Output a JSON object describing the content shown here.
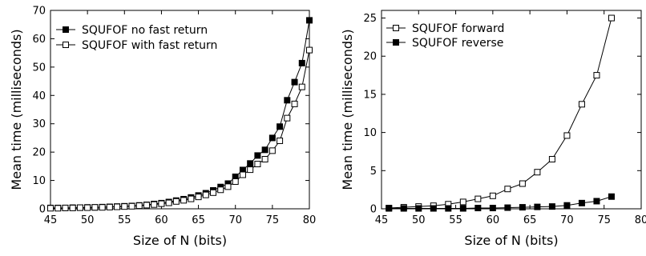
{
  "chart_data": [
    {
      "type": "line",
      "title": "",
      "xlabel": "Size of N (bits)",
      "ylabel": "Mean time (milliseconds)",
      "xlim": [
        45,
        80
      ],
      "ylim": [
        0,
        70
      ],
      "xticks": [
        45,
        50,
        55,
        60,
        65,
        70,
        75,
        80
      ],
      "yticks": [
        0,
        10,
        20,
        30,
        40,
        50,
        60,
        70
      ],
      "grid": false,
      "legend_position": "top-left",
      "series": [
        {
          "name": "SQUFOF no fast return",
          "marker": "filled-square",
          "x": [
            45,
            46,
            47,
            48,
            49,
            50,
            51,
            52,
            53,
            54,
            55,
            56,
            57,
            58,
            59,
            60,
            61,
            62,
            63,
            64,
            65,
            66,
            67,
            68,
            69,
            70,
            71,
            72,
            73,
            74,
            75,
            76,
            77,
            78,
            79,
            80
          ],
          "y": [
            0.3,
            0.3,
            0.3,
            0.4,
            0.4,
            0.5,
            0.5,
            0.6,
            0.7,
            0.8,
            0.9,
            1.0,
            1.2,
            1.4,
            1.7,
            2.0,
            2.4,
            2.9,
            3.4,
            4.0,
            4.7,
            5.5,
            6.5,
            7.7,
            8.9,
            11.3,
            13.7,
            16.0,
            18.8,
            20.8,
            25.0,
            29.0,
            38.3,
            44.7,
            51.4,
            66.5
          ]
        },
        {
          "name": "SQUFOF with fast return",
          "marker": "open-square",
          "x": [
            45,
            46,
            47,
            48,
            49,
            50,
            51,
            52,
            53,
            54,
            55,
            56,
            57,
            58,
            59,
            60,
            61,
            62,
            63,
            64,
            65,
            66,
            67,
            68,
            69,
            70,
            71,
            72,
            73,
            74,
            75,
            76,
            77,
            78,
            79,
            80
          ],
          "y": [
            0.2,
            0.2,
            0.3,
            0.3,
            0.4,
            0.4,
            0.5,
            0.5,
            0.6,
            0.7,
            0.8,
            0.9,
            1.1,
            1.3,
            1.5,
            1.8,
            2.1,
            2.6,
            3.0,
            3.5,
            4.2,
            4.9,
            5.7,
            6.7,
            7.8,
            9.6,
            12.0,
            13.8,
            15.8,
            17.5,
            20.5,
            24.0,
            32.0,
            37.0,
            43.0,
            56.0
          ]
        }
      ]
    },
    {
      "type": "line",
      "title": "",
      "xlabel": "Size of N (bits)",
      "ylabel": "Mean time (milliseconds)",
      "xlim": [
        45,
        80
      ],
      "ylim": [
        0,
        26
      ],
      "xticks": [
        45,
        50,
        55,
        60,
        65,
        70,
        75,
        80
      ],
      "yticks": [
        0,
        5,
        10,
        15,
        20,
        25
      ],
      "grid": false,
      "legend_position": "top-left",
      "series": [
        {
          "name": "SQUFOF forward",
          "marker": "open-square",
          "x": [
            46,
            48,
            50,
            52,
            54,
            56,
            58,
            60,
            62,
            64,
            66,
            68,
            70,
            72,
            74,
            76
          ],
          "y": [
            0.1,
            0.2,
            0.3,
            0.4,
            0.6,
            0.9,
            1.3,
            1.7,
            2.6,
            3.3,
            4.8,
            6.5,
            9.6,
            13.7,
            17.5,
            25.0
          ]
        },
        {
          "name": "SQUFOF reverse",
          "marker": "filled-square",
          "x": [
            46,
            48,
            50,
            52,
            54,
            56,
            58,
            60,
            62,
            64,
            66,
            68,
            70,
            72,
            74,
            76
          ],
          "y": [
            0.05,
            0.05,
            0.05,
            0.05,
            0.05,
            0.05,
            0.1,
            0.1,
            0.15,
            0.2,
            0.25,
            0.3,
            0.45,
            0.75,
            1.0,
            1.6
          ]
        }
      ]
    }
  ]
}
